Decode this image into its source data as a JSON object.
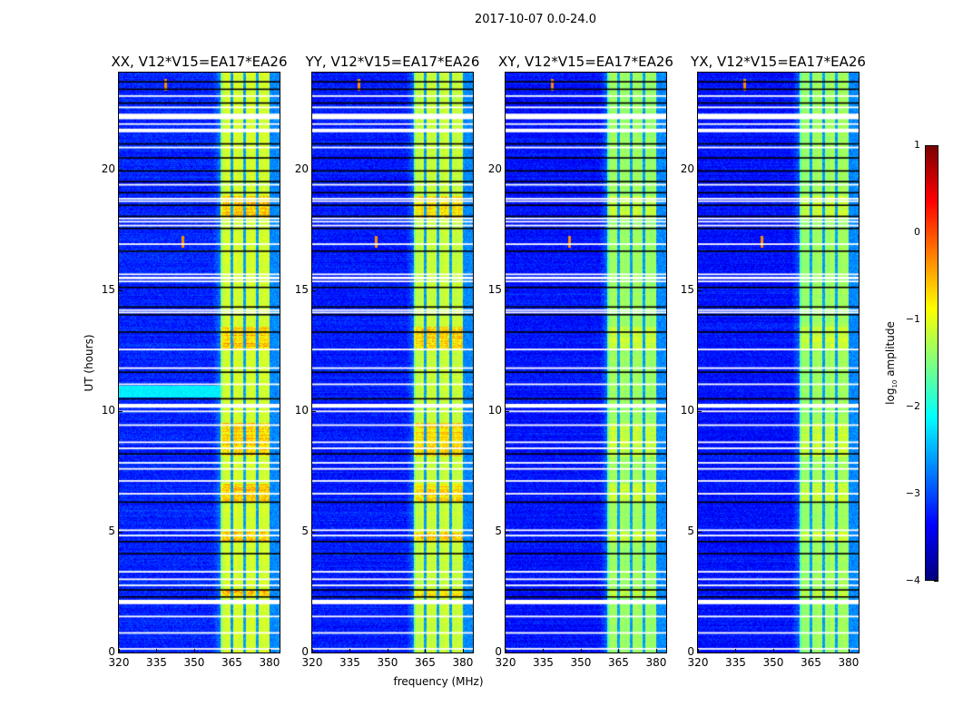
{
  "figure_title": "2017-10-07 0.0-24.0",
  "chart_data": {
    "type": "heatmap",
    "title": "2017-10-07 0.0-24.0",
    "xlabel": "frequency (MHz)",
    "ylabel": "UT (hours)",
    "xlim": [
      320,
      384
    ],
    "ylim": [
      0,
      24
    ],
    "xticks": [
      "320",
      "335",
      "350",
      "365",
      "380"
    ],
    "xtick_values": [
      320,
      335,
      350,
      365,
      380
    ],
    "yticks": [
      "0",
      "5",
      "10",
      "15",
      "20"
    ],
    "ytick_values": [
      0,
      5,
      10,
      15,
      20
    ],
    "colormap": "jet",
    "colorbar": {
      "label_prefix": "log",
      "label_sub": "10",
      "label_suffix": " amplitude",
      "range": [
        -4,
        1
      ],
      "ticks": [
        "1",
        "0",
        "−1",
        "−2",
        "−3",
        "−4"
      ],
      "tick_values": [
        1,
        0,
        -1,
        -2,
        -3,
        -4
      ]
    },
    "panels": [
      {
        "title": "XX, V12*V15=EA17*EA26",
        "band_level": -1.1,
        "background_level": -3.2
      },
      {
        "title": "YY, V12*V15=EA17*EA26",
        "band_level": -1.15,
        "background_level": -3.25
      },
      {
        "title": "XY, V12*V15=EA17*EA26",
        "band_level": -1.35,
        "background_level": -3.3
      },
      {
        "title": "YX, V12*V15=EA17*EA26",
        "band_level": -1.35,
        "background_level": -3.3
      }
    ],
    "signal_band_mhz": [
      360.4,
      380
    ],
    "dark_channels_mhz": [
      365.1,
      370.1,
      375.2
    ],
    "flagged_white_hours": [
      23.03,
      22.56,
      21.87,
      20.9,
      19.36,
      18.78,
      18.68,
      17.96,
      17.83,
      17.67,
      16.9,
      15.65,
      15.36,
      14.17,
      14.07,
      12.54,
      11.77,
      11.1,
      9.98,
      9.41,
      8.7,
      8.45,
      7.85,
      7.6,
      7.1,
      6.57,
      5.06,
      4.84,
      3.34,
      3.03,
      2.78,
      1.49,
      0.81,
      0.15
    ],
    "flagged_white_intervals": [
      [
        22.07,
        22.3
      ],
      [
        21.53,
        21.68
      ],
      [
        15.45,
        15.55
      ],
      [
        10.13,
        10.29
      ],
      [
        2.0,
        2.18
      ]
    ],
    "flagged_black_hours": [
      23.62,
      23.31,
      22.74,
      21.05,
      20.47,
      19.93,
      19.49,
      19.03,
      18.51,
      18.05,
      17.55,
      16.61,
      15.11,
      14.3,
      13.98,
      13.26,
      11.6,
      10.5,
      8.22,
      6.22,
      4.59,
      4.09,
      2.59,
      2.3
    ],
    "hot_band_hour_ranges": [
      [
        18.0,
        18.9
      ],
      [
        12.5,
        13.5
      ],
      [
        8.1,
        9.5
      ],
      [
        6.2,
        7.0
      ],
      [
        4.6,
        5.0
      ],
      [
        2.3,
        2.6
      ]
    ],
    "rfi_spots": [
      {
        "freq": 338.5,
        "hour": 23.5
      },
      {
        "freq": 345.5,
        "hour": 17.0
      }
    ]
  }
}
